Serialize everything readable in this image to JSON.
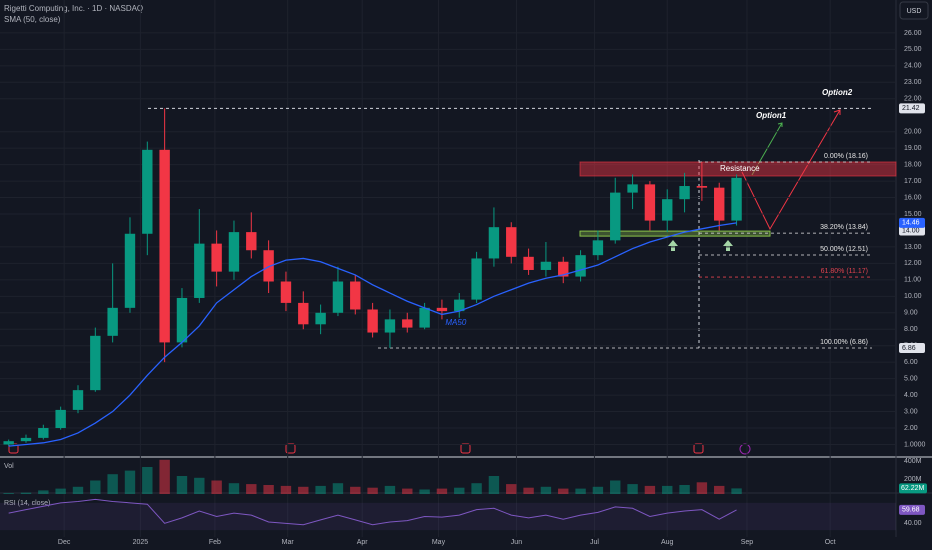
{
  "header": {
    "symbol": "Rigetti Computing, Inc. · 1D · NASDAQ",
    "currency": "USD"
  },
  "chart_data": {
    "type": "candlestick",
    "ylim": [
      0.3,
      28
    ],
    "yticks": [
      {
        "value": 26,
        "label": "26.00"
      },
      {
        "value": 25,
        "label": "25.00"
      },
      {
        "value": 24,
        "label": "24.00"
      },
      {
        "value": 23,
        "label": "23.00"
      },
      {
        "value": 22,
        "label": "22.00"
      },
      {
        "value": 20,
        "label": "20.00"
      },
      {
        "value": 19,
        "label": "19.00"
      },
      {
        "value": 18,
        "label": "18.00"
      },
      {
        "value": 17,
        "label": "17.00"
      },
      {
        "value": 16,
        "label": "16.00"
      },
      {
        "value": 15,
        "label": "15.00"
      },
      {
        "value": 13,
        "label": "13.00"
      },
      {
        "value": 12,
        "label": "12.00"
      },
      {
        "value": 11,
        "label": "11.00"
      },
      {
        "value": 10,
        "label": "10.00"
      },
      {
        "value": 9,
        "label": "9.00"
      },
      {
        "value": 8,
        "label": "8.00"
      },
      {
        "value": 7,
        "label": "7.00"
      },
      {
        "value": 6,
        "label": "6.00"
      },
      {
        "value": 5,
        "label": "5.00"
      },
      {
        "value": 4,
        "label": "4.00"
      },
      {
        "value": 3,
        "label": "3.00"
      },
      {
        "value": 2,
        "label": "2.00"
      },
      {
        "value": 1,
        "label": "1.0000"
      }
    ],
    "xlim": [
      -0.5,
      51.2
    ],
    "xticks": [
      {
        "value": 3.2,
        "label": "Dec"
      },
      {
        "value": 7.6,
        "label": "2025"
      },
      {
        "value": 11.9,
        "label": "Feb"
      },
      {
        "value": 16.1,
        "label": "Mar"
      },
      {
        "value": 20.4,
        "label": "Apr"
      },
      {
        "value": 24.8,
        "label": "May"
      },
      {
        "value": 29.3,
        "label": "Jun"
      },
      {
        "value": 33.8,
        "label": "Jul"
      },
      {
        "value": 38,
        "label": "Aug"
      },
      {
        "value": 42.6,
        "label": "Sep"
      },
      {
        "value": 47.4,
        "label": "Oct"
      }
    ],
    "up_color": "#089981",
    "down_color": "#f23645",
    "open": [
      1.0,
      1.2,
      1.4,
      2.0,
      3.1,
      4.3,
      7.6,
      9.3,
      13.8,
      18.9,
      7.2,
      9.9,
      13.2,
      11.5,
      13.9,
      12.8,
      10.9,
      9.6,
      8.3,
      9.0,
      10.9,
      9.2,
      7.8,
      8.6,
      8.1,
      9.3,
      9.1,
      9.8,
      12.3,
      14.2,
      12.4,
      11.6,
      12.1,
      11.2,
      12.5,
      13.4,
      16.3,
      16.8,
      14.6,
      15.9,
      16.7,
      16.6,
      14.6
    ],
    "high": [
      1.3,
      1.6,
      2.2,
      3.3,
      4.6,
      8.1,
      12.0,
      14.8,
      19.4,
      21.42,
      10.5,
      15.3,
      14.0,
      14.6,
      15.1,
      13.4,
      11.5,
      10.3,
      9.5,
      11.8,
      11.3,
      9.6,
      9.2,
      9.0,
      9.6,
      9.8,
      10.2,
      12.7,
      15.4,
      14.5,
      12.9,
      13.3,
      12.4,
      12.8,
      14.0,
      17.2,
      17.4,
      17.0,
      16.5,
      17.5,
      18.16,
      16.9,
      17.4
    ],
    "low": [
      0.9,
      1.1,
      1.3,
      1.9,
      2.9,
      4.2,
      7.2,
      9.0,
      12.5,
      6.0,
      6.9,
      9.6,
      10.6,
      11.0,
      12.3,
      10.2,
      9.1,
      8.0,
      7.7,
      8.8,
      8.9,
      7.5,
      6.86,
      7.8,
      8.0,
      8.6,
      8.7,
      9.6,
      11.8,
      12.0,
      11.3,
      11.2,
      10.8,
      10.9,
      12.2,
      13.2,
      15.3,
      14.0,
      13.9,
      15.1,
      15.8,
      14.0,
      14.3
    ],
    "close": [
      1.2,
      1.4,
      2.0,
      3.1,
      4.3,
      7.6,
      9.3,
      13.8,
      18.9,
      7.2,
      9.9,
      13.2,
      11.5,
      13.9,
      12.8,
      10.9,
      9.6,
      8.3,
      9.0,
      10.9,
      9.2,
      7.8,
      8.6,
      8.1,
      9.3,
      9.1,
      9.8,
      12.3,
      14.2,
      12.4,
      11.6,
      12.1,
      11.2,
      12.5,
      13.4,
      16.3,
      16.8,
      14.6,
      15.9,
      16.7,
      16.6,
      14.6,
      17.2
    ],
    "sma": {
      "name": "SMA (50, close)",
      "label": "MA50",
      "color": "#2962ff",
      "values": [
        0.9,
        1.0,
        1.1,
        1.3,
        1.7,
        2.3,
        3.0,
        4.0,
        5.2,
        6.3,
        7.2,
        8.2,
        9.6,
        10.4,
        11.2,
        11.8,
        12.2,
        12.3,
        12.1,
        11.7,
        11.3,
        10.7,
        10.2,
        9.7,
        9.3,
        8.9,
        9.1,
        9.5,
        10.0,
        10.4,
        10.8,
        11.1,
        11.3,
        11.6,
        11.9,
        12.4,
        12.9,
        13.3,
        13.6,
        13.9,
        14.1,
        14.3,
        14.46
      ]
    },
    "price_lines": [
      21.42,
      {
        "value": 14,
        "label": "14.00"
      },
      6.86
    ],
    "fib_levels": [
      {
        "value": 18.16,
        "label": "0.00% (18.16)",
        "color": "#e6e6e6"
      },
      {
        "value": 13.84,
        "label": "38.20% (13.84)",
        "color": "#e6e6e6"
      },
      {
        "value": 12.51,
        "label": "50.00% (12.51)",
        "color": "#e6e6e6"
      },
      {
        "value": 11.17,
        "label": "61.80% (11.17)",
        "color": "#e0434f"
      },
      {
        "value": 6.86,
        "label": "100.00% (6.86)",
        "color": "#e6e6e6"
      }
    ],
    "annotations": {
      "resistance": "Resistance",
      "option1": "Option1",
      "option2": "Option2"
    },
    "volume": {
      "name": "Vol",
      "ylim": [
        0,
        400
      ],
      "yticks": [
        {
          "value": 400,
          "label": "400M"
        },
        {
          "value": 200,
          "label": "200M"
        }
      ],
      "values": [
        10,
        15,
        40,
        60,
        80,
        150,
        220,
        260,
        300,
        380,
        200,
        180,
        150,
        120,
        110,
        100,
        90,
        80,
        90,
        120,
        80,
        70,
        90,
        60,
        50,
        60,
        70,
        120,
        200,
        110,
        70,
        80,
        60,
        60,
        80,
        150,
        110,
        90,
        90,
        100,
        130,
        90,
        62.22
      ],
      "value_labels": [
        null,
        null,
        null,
        null,
        null,
        null,
        null,
        null,
        null,
        null,
        null,
        null,
        null,
        null,
        null,
        null,
        null,
        null,
        null,
        null,
        null,
        null,
        null,
        null,
        null,
        null,
        null,
        null,
        null,
        null,
        null,
        null,
        null,
        null,
        null,
        null,
        null,
        null,
        null,
        null,
        null,
        null,
        "62.22M"
      ]
    },
    "rsi": {
      "name": "RSI (14, close)",
      "color": "#7e57c2",
      "ylim": [
        20,
        80
      ],
      "yticks": [
        {
          "value": 40,
          "label": "40.00"
        }
      ],
      "values": [
        55,
        60,
        65,
        70,
        72,
        75,
        72,
        70,
        68,
        40,
        48,
        58,
        50,
        55,
        52,
        42,
        40,
        38,
        45,
        52,
        45,
        38,
        42,
        44,
        50,
        49,
        52,
        60,
        62,
        52,
        48,
        52,
        46,
        52,
        56,
        64,
        62,
        50,
        55,
        58,
        60,
        46,
        59.68
      ]
    }
  }
}
